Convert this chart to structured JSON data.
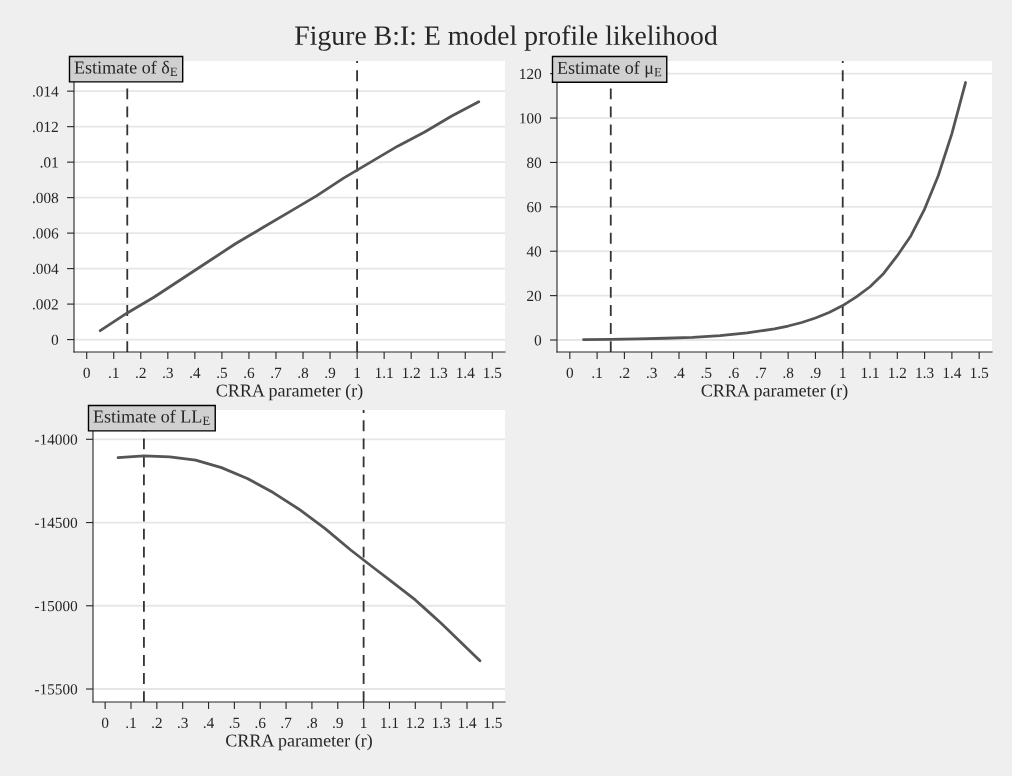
{
  "chart_data": [
    {
      "type": "line",
      "title": "Estimate of δ$_{E}$",
      "xlabel": "CRRA parameter (r)",
      "annotations": [
        "Figure B:I: E model profile likelihood"
      ],
      "series": [
        {
          "color": "#555555",
          "x": [
            0.05,
            0.15,
            0.25,
            0.35,
            0.45,
            0.55,
            0.65,
            0.75,
            0.85,
            0.95,
            1.05,
            1.15,
            1.25,
            1.35,
            1.45
          ],
          "values": [
            0.0005,
            0.0015,
            0.0024,
            0.0034,
            0.0044,
            0.0054,
            0.0063,
            0.0072,
            0.0081,
            0.0091,
            0.01,
            0.0109,
            0.0117,
            0.0126,
            0.0134
          ]
        }
      ],
      "xlim": [
        -0.047,
        1.547
      ],
      "ylim": [
        -0.0007,
        0.0157
      ],
      "xticks": [
        0,
        {
          "value": 0.1,
          "label": ".1"
        },
        {
          "value": 0.2,
          "label": ".2"
        },
        {
          "value": 0.3,
          "label": ".3"
        },
        {
          "value": 0.4,
          "label": ".4"
        },
        {
          "value": 0.5,
          "label": ".5"
        },
        {
          "value": 0.6,
          "label": ".6"
        },
        {
          "value": 0.7,
          "label": ".7"
        },
        {
          "value": 0.8,
          "label": ".8"
        },
        {
          "value": 0.9,
          "label": ".9"
        },
        1,
        1.1,
        1.2,
        1.3,
        1.4,
        1.5
      ],
      "yticks": [
        0,
        {
          "value": 0.002,
          "label": ".002"
        },
        {
          "value": 0.004,
          "label": ".004"
        },
        {
          "value": 0.006,
          "label": ".006"
        },
        {
          "value": 0.008,
          "label": ".008"
        },
        {
          "value": 0.01,
          "label": ".01"
        },
        {
          "value": 0.012,
          "label": ".012"
        },
        {
          "value": 0.014,
          "label": ".014"
        }
      ],
      "ref_lines": [
        {
          "axis": "x",
          "value": 0.15,
          "line_style": "dashed"
        },
        {
          "axis": "x",
          "value": 1,
          "line_style": "dashed"
        }
      ],
      "grid": "y",
      "marker": "none",
      "line_style": "solid"
    },
    {
      "type": "line",
      "title": "Estimate of μ$_{E}$",
      "xlabel": "CRRA parameter (r)",
      "series": [
        {
          "color": "#555555",
          "x": [
            0.05,
            0.15,
            0.25,
            0.35,
            0.45,
            0.55,
            0.65,
            0.75,
            0.8,
            0.85,
            0.9,
            0.95,
            1.0,
            1.05,
            1.1,
            1.15,
            1.2,
            1.25,
            1.3,
            1.35,
            1.4,
            1.45
          ],
          "values": [
            0.2,
            0.3,
            0.5,
            0.8,
            1.2,
            2.0,
            3.2,
            5.0,
            6.3,
            7.9,
            9.9,
            12.4,
            15.5,
            19.4,
            24,
            30,
            38,
            47,
            59,
            74,
            93,
            116
          ]
        }
      ],
      "xlim": [
        -0.047,
        1.547
      ],
      "ylim": [
        -5.4,
        125.7
      ],
      "xticks": [
        0,
        {
          "value": 0.1,
          "label": ".1"
        },
        {
          "value": 0.2,
          "label": ".2"
        },
        {
          "value": 0.3,
          "label": ".3"
        },
        {
          "value": 0.4,
          "label": ".4"
        },
        {
          "value": 0.5,
          "label": ".5"
        },
        {
          "value": 0.6,
          "label": ".6"
        },
        {
          "value": 0.7,
          "label": ".7"
        },
        {
          "value": 0.8,
          "label": ".8"
        },
        {
          "value": 0.9,
          "label": ".9"
        },
        1,
        1.1,
        1.2,
        1.3,
        1.4,
        1.5
      ],
      "yticks": [
        0,
        20,
        40,
        60,
        80,
        100,
        120
      ],
      "ref_lines": [
        {
          "axis": "x",
          "value": 0.15,
          "line_style": "dashed"
        },
        {
          "axis": "x",
          "value": 1,
          "line_style": "dashed"
        }
      ],
      "grid": "y",
      "marker": "none",
      "line_style": "solid"
    },
    {
      "type": "line",
      "title": "Estimate of LL$_{E}$",
      "xlabel": "CRRA parameter (r)",
      "series": [
        {
          "color": "#555555",
          "x": [
            0.05,
            0.15,
            0.25,
            0.35,
            0.45,
            0.55,
            0.65,
            0.75,
            0.85,
            0.95,
            1.0,
            1.05,
            1.1,
            1.15,
            1.2,
            1.25,
            1.3,
            1.35,
            1.4,
            1.45
          ],
          "values": [
            -14110,
            -14100,
            -14105,
            -14125,
            -14170,
            -14235,
            -14320,
            -14420,
            -14535,
            -14665,
            -14725,
            -14785,
            -14845,
            -14905,
            -14965,
            -15035,
            -15105,
            -15180,
            -15255,
            -15330
          ]
        }
      ],
      "xlim": [
        -0.047,
        1.547
      ],
      "ylim": [
        -15578,
        -13824
      ],
      "xticks": [
        0,
        {
          "value": 0.1,
          "label": ".1"
        },
        {
          "value": 0.2,
          "label": ".2"
        },
        {
          "value": 0.3,
          "label": ".3"
        },
        {
          "value": 0.4,
          "label": ".4"
        },
        {
          "value": 0.5,
          "label": ".5"
        },
        {
          "value": 0.6,
          "label": ".6"
        },
        {
          "value": 0.7,
          "label": ".7"
        },
        {
          "value": 0.8,
          "label": ".8"
        },
        {
          "value": 0.9,
          "label": ".9"
        },
        1,
        1.1,
        1.2,
        1.3,
        1.4,
        1.5
      ],
      "yticks": [
        -15500,
        -15000,
        -14500,
        -14000
      ],
      "ref_lines": [
        {
          "axis": "x",
          "value": 0.15,
          "line_style": "dashed"
        },
        {
          "axis": "x",
          "value": 1,
          "line_style": "dashed"
        }
      ],
      "grid": "y",
      "marker": "none",
      "line_style": "solid"
    }
  ]
}
